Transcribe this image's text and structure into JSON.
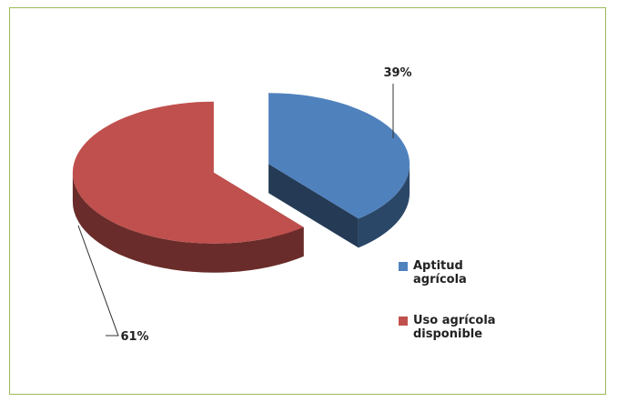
{
  "chart_data": {
    "type": "pie",
    "categories": [
      "Aptitud agrícola",
      "Uso agrícola disponible"
    ],
    "values": [
      39,
      61
    ],
    "value_labels": [
      "39%",
      "61%"
    ],
    "colors": [
      "#4f81bd",
      "#c0504d"
    ],
    "legend": "right"
  }
}
